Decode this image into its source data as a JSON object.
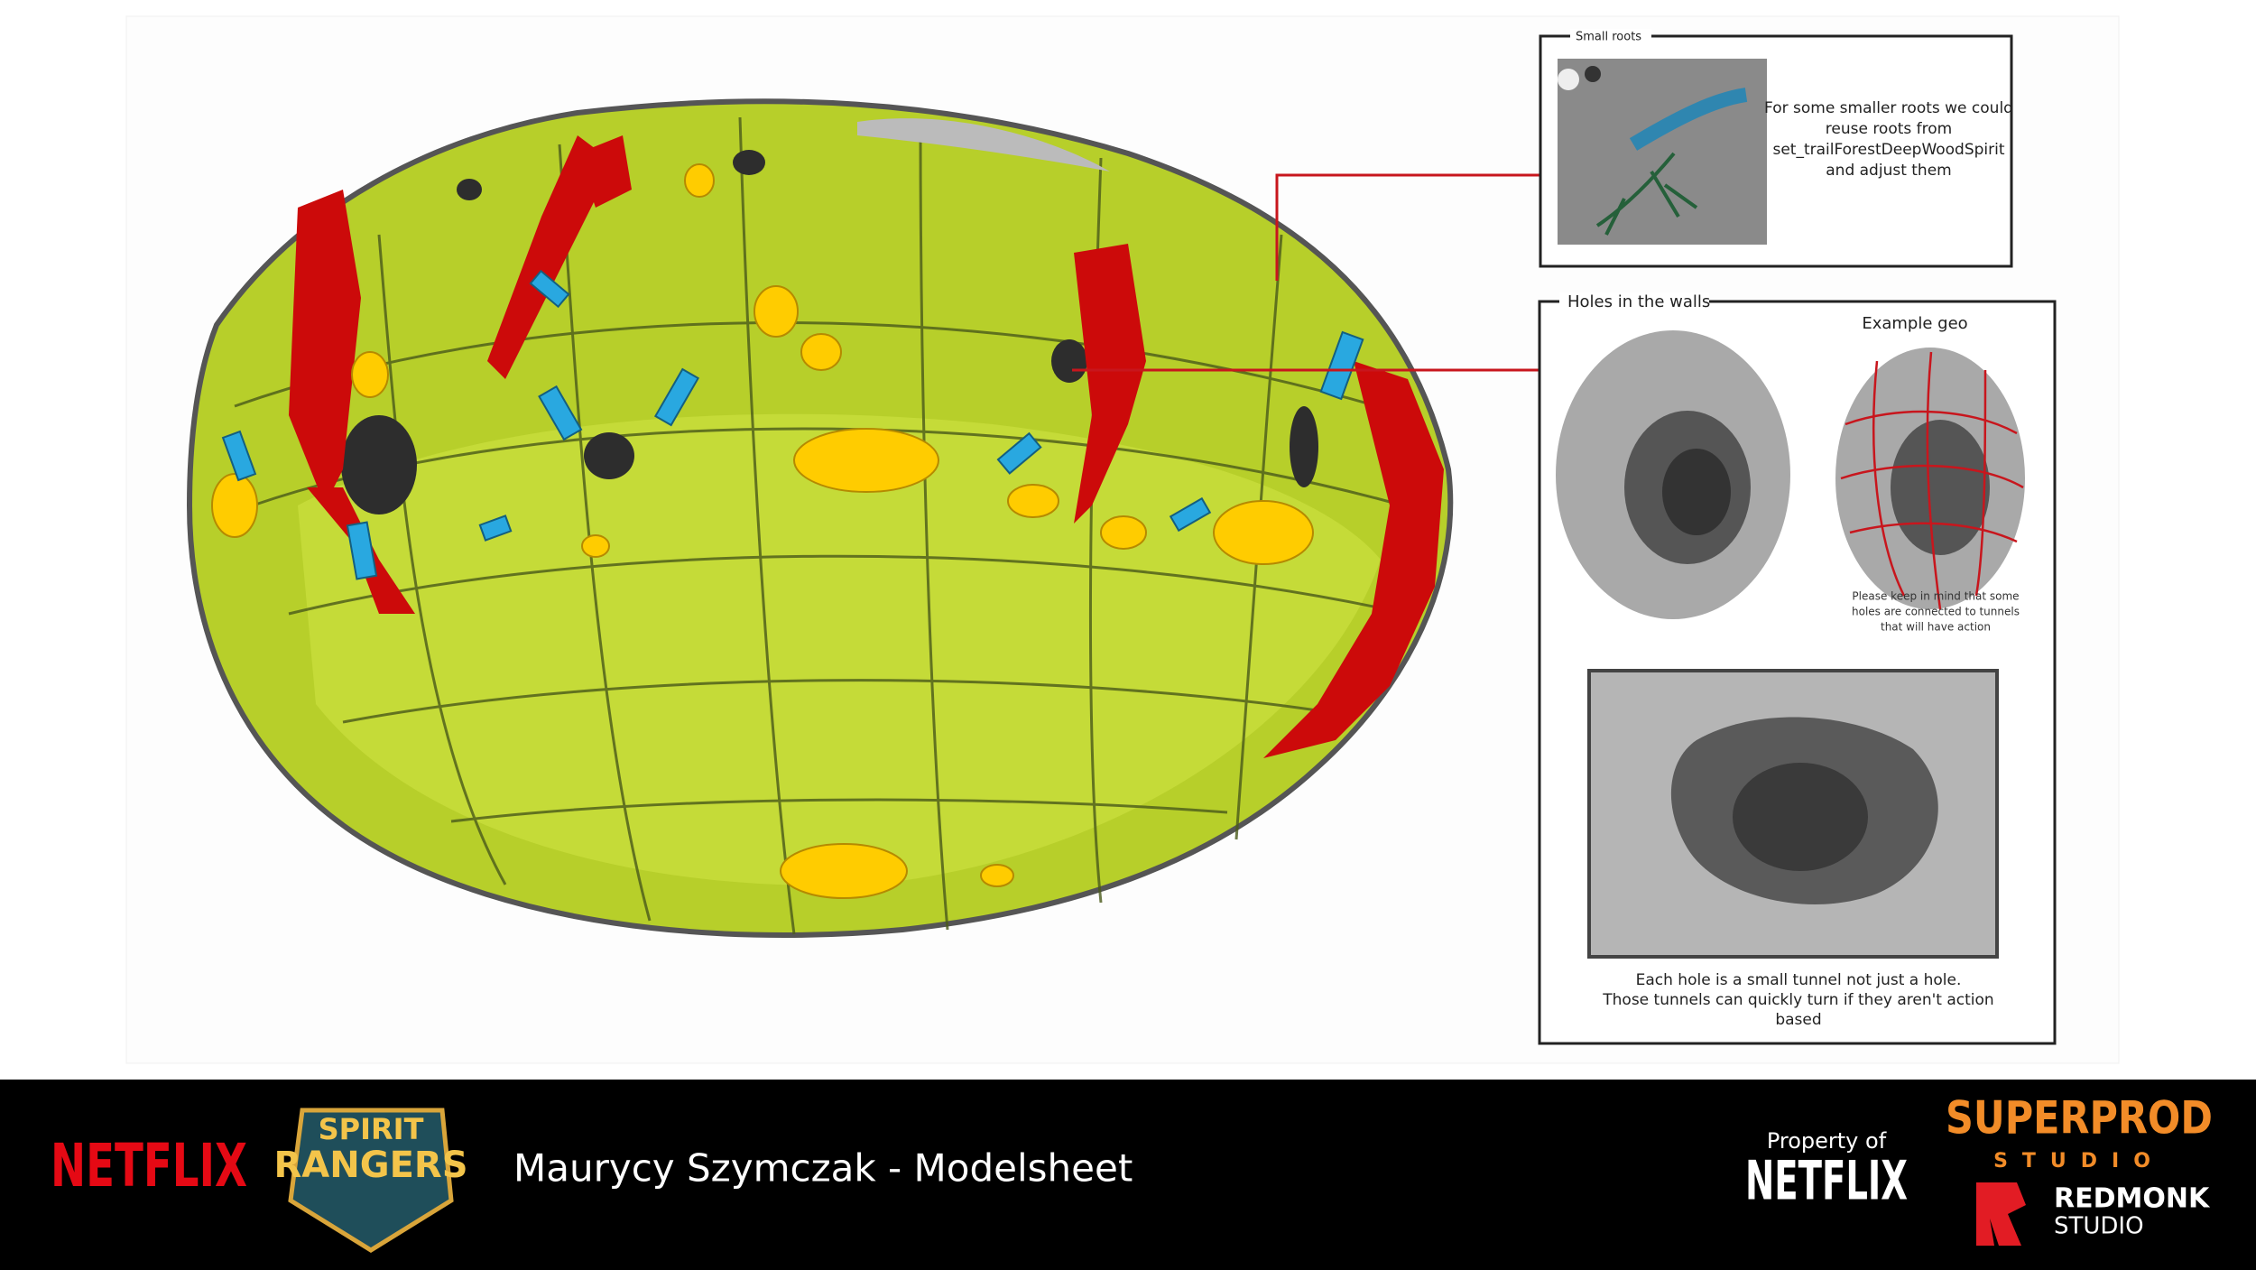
{
  "panels": {
    "small_roots": {
      "title": "Small roots",
      "text": [
        "For some smaller roots we could",
        "reuse roots from",
        "set_trailForestDeepWoodSpirit",
        "and adjust them"
      ]
    },
    "holes": {
      "title": "Holes in the walls",
      "example_label": "Example geo",
      "note": [
        "Please keep in mind that some",
        "holes are connected to tunnels",
        "that will have action"
      ],
      "caption": [
        "Each hole is a small tunnel not just a hole.",
        "Those tunnels can quickly turn if they aren't action",
        "based"
      ]
    }
  },
  "footer": {
    "netflix": "NETFLIX",
    "show_logo": [
      "SPIRIT",
      "RANGERS"
    ],
    "title": "Maurycy Szymczak - Modelsheet",
    "property_of": "Property of",
    "owner": "NETFLIX",
    "studio1": [
      "SUPERPROD",
      "STUDIO"
    ],
    "studio2": [
      "REDMONK",
      "STUDIO"
    ]
  }
}
